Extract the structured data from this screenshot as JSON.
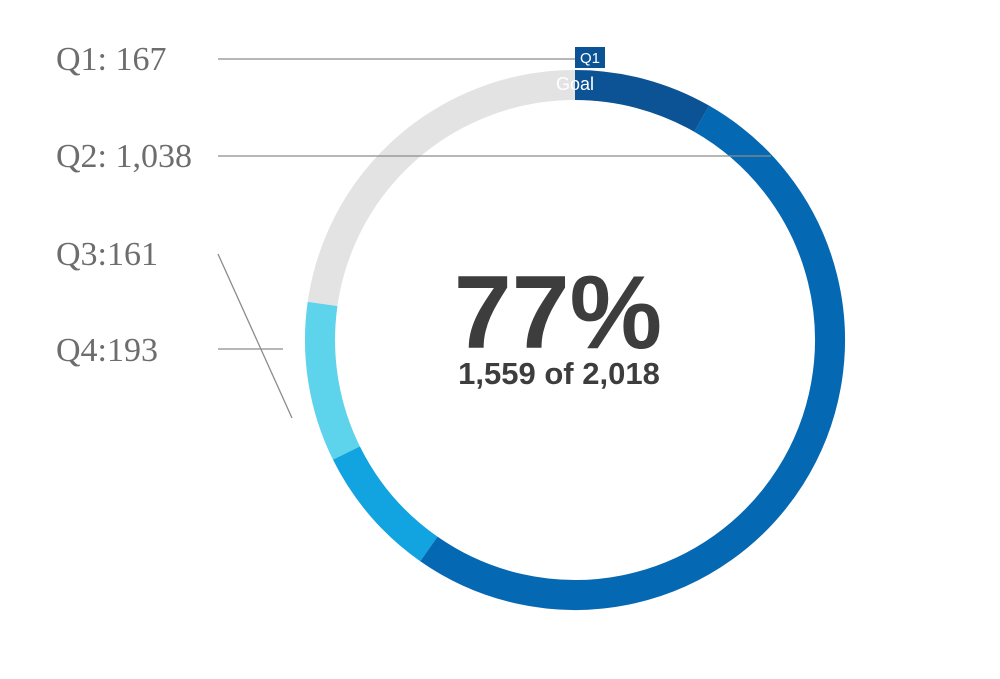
{
  "chart_data": {
    "type": "radial-progress",
    "center_percent": "77%",
    "center_caption": "1,559 of 2,018",
    "goal_label": "Goal",
    "goal": 2018,
    "total": 1559,
    "series": [
      {
        "name": "Q1",
        "label": "Q1: 167",
        "value": 167,
        "color": "#0b5394"
      },
      {
        "name": "Q2",
        "label": "Q2: 1,038",
        "value": 1038,
        "color": "#0568b3"
      },
      {
        "name": "Q3",
        "label": "Q3:161",
        "value": 161,
        "color": "#11a4e0"
      },
      {
        "name": "Q4",
        "label": "Q4:193",
        "value": 193,
        "color": "#5dd3ec"
      }
    ],
    "track_color": "#e3e3e3",
    "text_color": "#3d3d3d",
    "label_color": "#6d6d6d"
  }
}
